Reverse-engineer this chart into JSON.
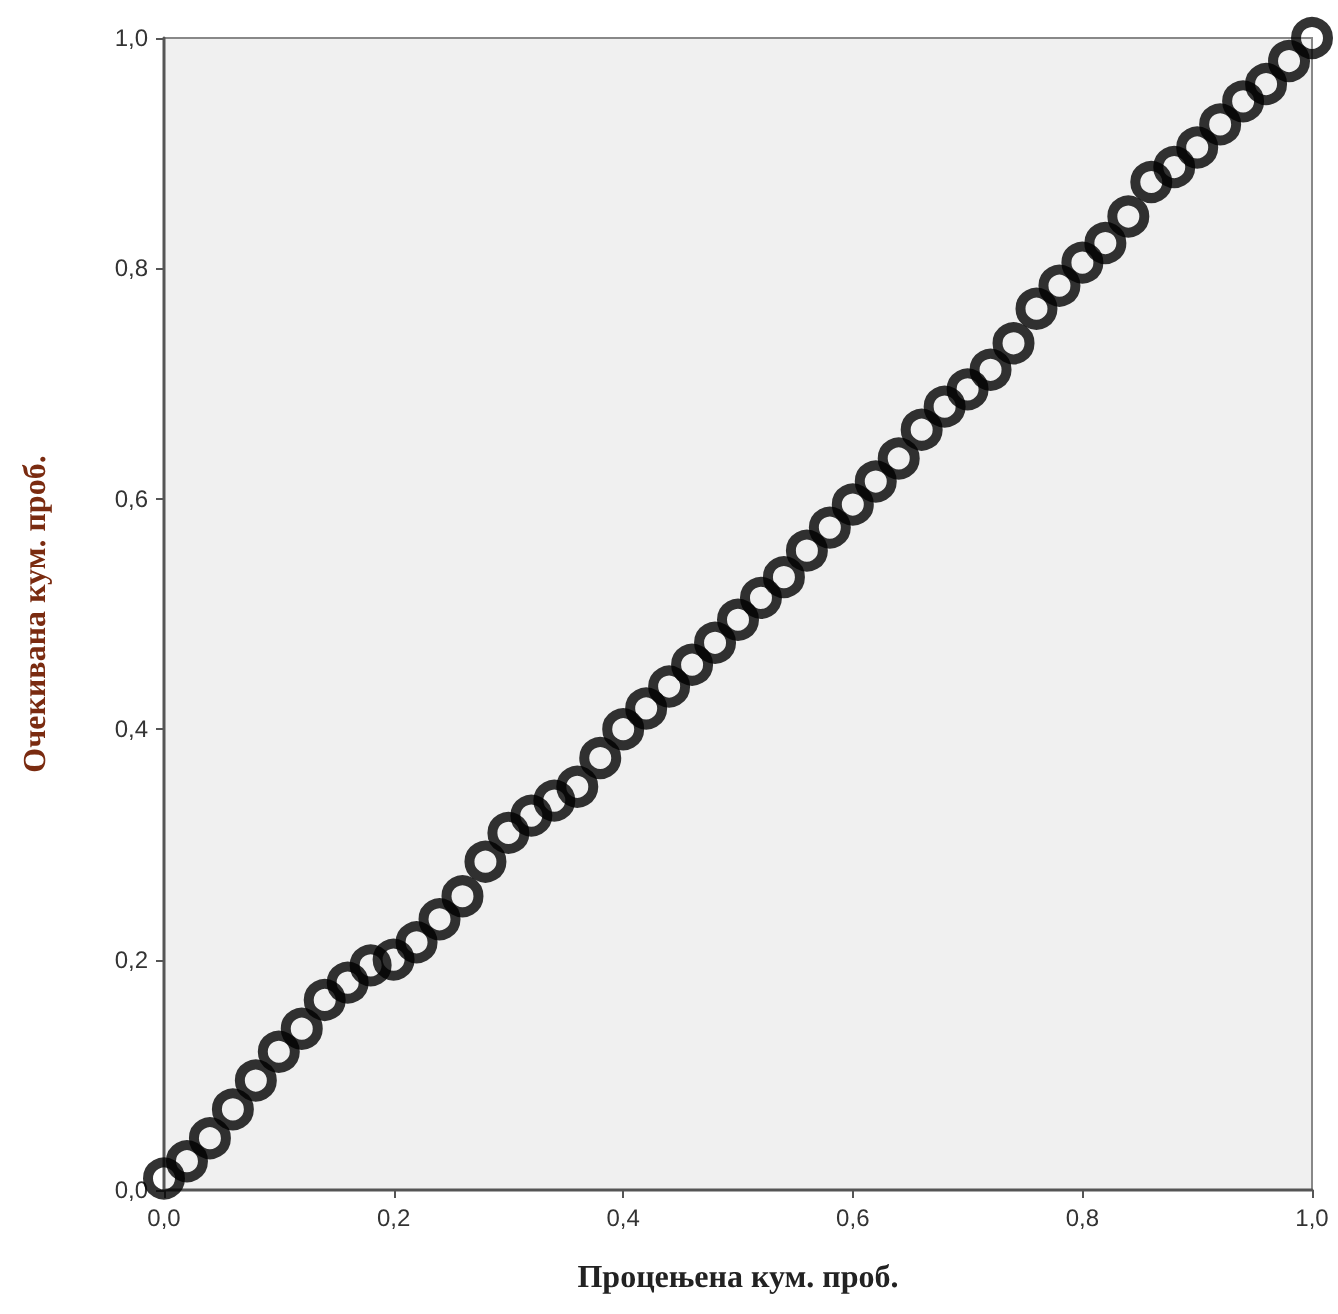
{
  "chart_data": {
    "type": "scatter",
    "xlabel": "Процењена кум. проб.",
    "ylabel": "Очекивана кум. проб.",
    "x": [
      0,
      0.02,
      0.04,
      0.06,
      0.08,
      0.1,
      0.12,
      0.14,
      0.16,
      0.18,
      0.2,
      0.22,
      0.24,
      0.26,
      0.28,
      0.3,
      0.32,
      0.34,
      0.36,
      0.38,
      0.4,
      0.42,
      0.44,
      0.46,
      0.48,
      0.5,
      0.52,
      0.54,
      0.56,
      0.58,
      0.6,
      0.62,
      0.64,
      0.66,
      0.68,
      0.7,
      0.72,
      0.74,
      0.76,
      0.78,
      0.8,
      0.82,
      0.84,
      0.86,
      0.88,
      0.9,
      0.92,
      0.94,
      0.96,
      0.98,
      1.0
    ],
    "values": [
      0.01,
      0.025,
      0.045,
      0.07,
      0.095,
      0.12,
      0.14,
      0.165,
      0.18,
      0.195,
      0.2,
      0.215,
      0.235,
      0.255,
      0.285,
      0.31,
      0.325,
      0.338,
      0.35,
      0.375,
      0.4,
      0.418,
      0.437,
      0.456,
      0.475,
      0.495,
      0.514,
      0.532,
      0.555,
      0.575,
      0.595,
      0.615,
      0.635,
      0.66,
      0.68,
      0.695,
      0.712,
      0.735,
      0.765,
      0.785,
      0.805,
      0.822,
      0.845,
      0.875,
      0.888,
      0.905,
      0.925,
      0.945,
      0.96,
      0.98,
      1.0
    ],
    "color": "#000000",
    "marker": "circle",
    "xlim": [
      0,
      1
    ],
    "ylim": [
      0,
      1
    ],
    "xticks": [
      {
        "value": 0,
        "label": "0,0"
      },
      {
        "value": 0.2,
        "label": "0,2"
      },
      {
        "value": 0.4,
        "label": "0,4"
      },
      {
        "value": 0.6,
        "label": "0,6"
      },
      {
        "value": 0.8,
        "label": "0,8"
      },
      {
        "value": 1,
        "label": "1,0"
      }
    ],
    "yticks": [
      {
        "value": 0,
        "label": "0,0"
      },
      {
        "value": 0.2,
        "label": "0,2"
      },
      {
        "value": 0.4,
        "label": "0,4"
      },
      {
        "value": 0.6,
        "label": "0,6"
      },
      {
        "value": 0.8,
        "label": "0,8"
      },
      {
        "value": 1,
        "label": "1,0"
      }
    ],
    "grid": false
  }
}
